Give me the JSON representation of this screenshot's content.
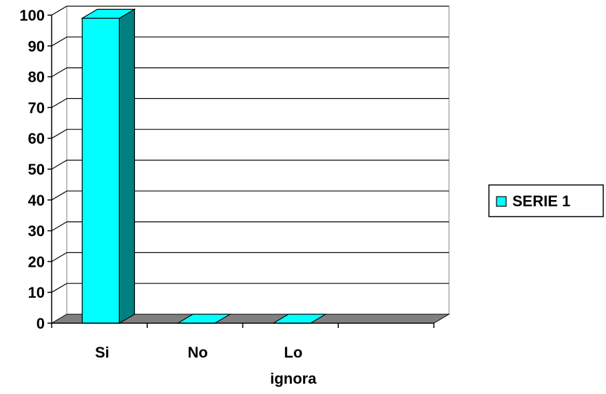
{
  "chart_data": {
    "type": "bar",
    "style": "3d",
    "categories": [
      "Si",
      "No",
      "Lo\nignora",
      ""
    ],
    "series": [
      {
        "name": "SERIE 1",
        "values": [
          99,
          0,
          0,
          null
        ],
        "color": "#00ffff",
        "side_color": "#008080"
      }
    ],
    "ylim": [
      0,
      100
    ],
    "yticks": [
      "0",
      "10",
      "20",
      "30",
      "40",
      "50",
      "60",
      "70",
      "80",
      "90",
      "100"
    ],
    "grid": true,
    "floor_color": "#808080",
    "legend": {
      "position": "right",
      "entries": [
        "SERIE 1"
      ]
    },
    "title": "",
    "xlabel": "",
    "ylabel": ""
  }
}
